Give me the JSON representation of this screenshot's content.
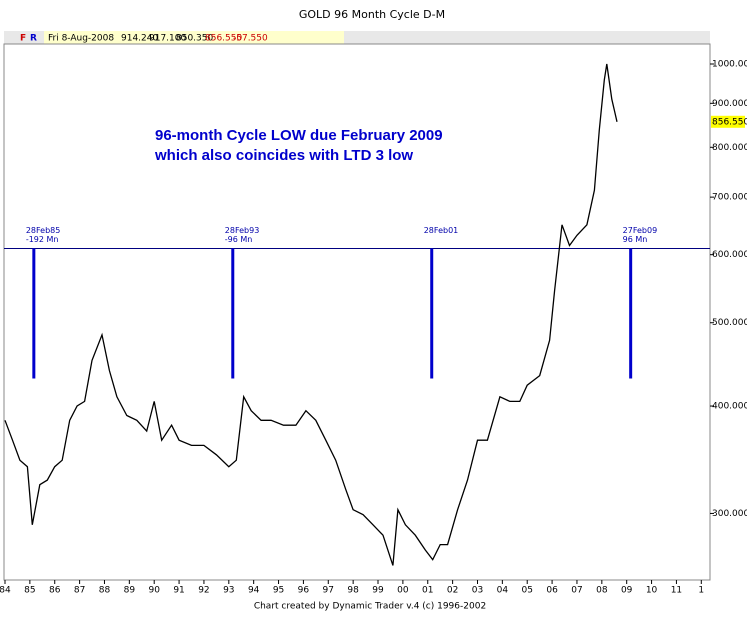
{
  "chart_data": {
    "type": "line",
    "title": "GOLD 96 Month Cycle  D-M",
    "info": {
      "icons": [
        "F",
        "R"
      ],
      "date": "Fri 8-Aug-2008",
      "open": "914.240",
      "high": "917.100",
      "low": "850.350",
      "close": "856.550",
      "change": "-57.550"
    },
    "annotation": [
      "96-month Cycle LOW due February 2009",
      "which also coincides with LTD 3 low"
    ],
    "footer": "Chart created by Dynamic Trader v.4  (c) 1996-2002",
    "log_scale": true,
    "color": "#000000",
    "xlim": [
      1983.96,
      2012.35
    ],
    "ylim": [
      251,
      1055
    ],
    "yticks": [
      {
        "value": 300,
        "label": "300.000"
      },
      {
        "value": 400,
        "label": "400.000"
      },
      {
        "value": 500,
        "label": "500.000"
      },
      {
        "value": 600,
        "label": "600.000"
      },
      {
        "value": 700,
        "label": "700.000"
      },
      {
        "value": 800,
        "label": "800.000"
      },
      {
        "value": 900,
        "label": "900.000"
      },
      {
        "value": 1000,
        "label": "1000.000"
      }
    ],
    "xticks": [
      {
        "value": 1984,
        "label": "84"
      },
      {
        "value": 1985,
        "label": "85"
      },
      {
        "value": 1986,
        "label": "86"
      },
      {
        "value": 1987,
        "label": "87"
      },
      {
        "value": 1988,
        "label": "88"
      },
      {
        "value": 1989,
        "label": "89"
      },
      {
        "value": 1990,
        "label": "90"
      },
      {
        "value": 1991,
        "label": "91"
      },
      {
        "value": 1992,
        "label": "92"
      },
      {
        "value": 1993,
        "label": "93"
      },
      {
        "value": 1994,
        "label": "94"
      },
      {
        "value": 1995,
        "label": "95"
      },
      {
        "value": 1996,
        "label": "96"
      },
      {
        "value": 1997,
        "label": "97"
      },
      {
        "value": 1998,
        "label": "98"
      },
      {
        "value": 1999,
        "label": "99"
      },
      {
        "value": 2000,
        "label": "00"
      },
      {
        "value": 2001,
        "label": "01"
      },
      {
        "value": 2002,
        "label": "02"
      },
      {
        "value": 2003,
        "label": "03"
      },
      {
        "value": 2004,
        "label": "04"
      },
      {
        "value": 2005,
        "label": "05"
      },
      {
        "value": 2006,
        "label": "06"
      },
      {
        "value": 2007,
        "label": "07"
      },
      {
        "value": 2008,
        "label": "08"
      },
      {
        "value": 2009,
        "label": "09"
      },
      {
        "value": 2010,
        "label": "10"
      },
      {
        "value": 2011,
        "label": "11"
      },
      {
        "value": 2012,
        "label": "1"
      }
    ],
    "x": [
      1984.0,
      1984.3,
      1984.6,
      1984.9,
      1985.1,
      1985.4,
      1985.7,
      1986.0,
      1986.3,
      1986.6,
      1986.9,
      1987.2,
      1987.5,
      1987.9,
      1988.2,
      1988.5,
      1988.9,
      1989.3,
      1989.7,
      1990.0,
      1990.3,
      1990.7,
      1991.0,
      1991.5,
      1992.0,
      1992.5,
      1993.0,
      1993.3,
      1993.6,
      1993.9,
      1994.3,
      1994.7,
      1995.2,
      1995.7,
      1996.1,
      1996.5,
      1996.9,
      1997.3,
      1997.7,
      1998.0,
      1998.4,
      1998.8,
      1999.2,
      1999.6,
      1999.8,
      2000.1,
      2000.5,
      2000.9,
      2001.2,
      2001.5,
      2001.8,
      2002.2,
      2002.6,
      2003.0,
      2003.4,
      2003.9,
      2004.3,
      2004.7,
      2005.0,
      2005.5,
      2005.9,
      2006.1,
      2006.4,
      2006.7,
      2007.0,
      2007.4,
      2007.7,
      2007.9,
      2008.1,
      2008.2,
      2008.4,
      2008.5,
      2008.61
    ],
    "values": [
      385,
      365,
      346,
      340,
      291,
      324,
      328,
      340,
      346,
      385,
      400,
      405,
      452,
      484,
      440,
      410,
      390,
      385,
      374,
      405,
      365,
      380,
      365,
      360,
      360,
      351,
      340,
      346,
      410,
      395,
      385,
      385,
      380,
      380,
      395,
      385,
      365,
      346,
      320,
      303,
      299,
      291,
      283,
      261,
      303,
      291,
      283,
      272,
      265,
      276,
      276,
      303,
      328,
      365,
      365,
      410,
      405,
      405,
      423,
      434,
      477,
      545,
      650,
      615,
      632,
      650,
      713,
      838,
      958,
      1000,
      910,
      884,
      856.55
    ],
    "last_value": {
      "value": 856.55,
      "label": "856.550"
    },
    "hline": 610,
    "markers": [
      {
        "x": 1985.16,
        "label": "28Feb85",
        "sublabel": "-192 Mn"
      },
      {
        "x": 1993.16,
        "label": "28Feb93",
        "sublabel": "-96 Mn"
      },
      {
        "x": 2001.16,
        "label": "28Feb01"
      },
      {
        "x": 2009.16,
        "label": "27Feb09",
        "sublabel": "96 Mn"
      }
    ]
  }
}
